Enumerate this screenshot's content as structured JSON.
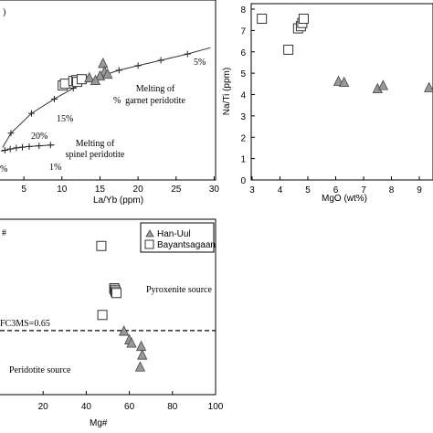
{
  "chart_data": [
    {
      "type": "line",
      "panel_label": ")",
      "xlabel": "La/Yb (ppm)",
      "ylabel": "",
      "xlim": [
        2,
        30
      ],
      "x_ticks": [
        "5",
        "10",
        "15",
        "20",
        "25",
        "30"
      ],
      "curves": [
        {
          "name": "garnet",
          "points": [
            [
              2.2,
              0.18
            ],
            [
              3.3,
              0.26
            ],
            [
              6.0,
              0.37
            ],
            [
              9.0,
              0.45
            ],
            [
              11.5,
              0.51
            ],
            [
              13.0,
              0.54
            ],
            [
              15.0,
              0.575
            ],
            [
              17.5,
              0.61
            ],
            [
              20.0,
              0.635
            ],
            [
              23.0,
              0.665
            ],
            [
              26.5,
              0.7
            ],
            [
              29.5,
              0.735
            ]
          ],
          "markers": [
            [
              3.3,
              0.26
            ],
            [
              6.0,
              0.37
            ],
            [
              9.0,
              0.45
            ],
            [
              11.5,
              0.51
            ],
            [
              15.0,
              0.575
            ],
            [
              17.5,
              0.61
            ],
            [
              20.0,
              0.635
            ],
            [
              23.0,
              0.665
            ],
            [
              26.5,
              0.7
            ]
          ]
        },
        {
          "name": "spinel",
          "points": [
            [
              2.0,
              0.16
            ],
            [
              3.0,
              0.17
            ],
            [
              4.0,
              0.178
            ],
            [
              5.5,
              0.185
            ],
            [
              7.0,
              0.19
            ],
            [
              9.0,
              0.195
            ]
          ],
          "markers": [
            [
              2.5,
              0.165
            ],
            [
              3.2,
              0.172
            ],
            [
              4.0,
              0.178
            ],
            [
              4.8,
              0.182
            ],
            [
              5.7,
              0.186
            ],
            [
              7.0,
              0.19
            ],
            [
              8.5,
              0.194
            ]
          ]
        }
      ],
      "han_uul": [
        [
          15.4,
          0.645
        ],
        [
          15.6,
          0.6
        ],
        [
          15.0,
          0.575
        ],
        [
          16.0,
          0.585
        ],
        [
          13.6,
          0.565
        ],
        [
          14.4,
          0.55
        ]
      ],
      "bayantsagaan": [
        [
          10.1,
          0.525
        ],
        [
          10.4,
          0.535
        ],
        [
          11.5,
          0.55
        ],
        [
          11.9,
          0.555
        ],
        [
          12.0,
          0.545
        ],
        [
          12.6,
          0.56
        ]
      ],
      "annotations": {
        "garnet_label_1": "Melting of",
        "garnet_label_2": "garnet peridotite",
        "spinel_label_1": "Melting of",
        "spinel_label_2": "spinel peridotite",
        "p5": "5%",
        "p15": "15%",
        "p20": "20%",
        "p1": "1%",
        "p0": "%",
        "p1b": "%"
      }
    },
    {
      "type": "scatter",
      "xlabel": "MgO (wt%)",
      "ylabel": "Na/Ti (ppm)",
      "xlim": [
        3,
        9.5
      ],
      "ylim": [
        0,
        8
      ],
      "x_ticks": [
        "3",
        "4",
        "5",
        "6",
        "7",
        "8",
        "9"
      ],
      "y_ticks": [
        "0",
        "1",
        "2",
        "3",
        "4",
        "5",
        "6",
        "7",
        "8"
      ],
      "bayantsagaan": [
        [
          3.35,
          7.55
        ],
        [
          4.3,
          6.1
        ],
        [
          4.65,
          7.1
        ],
        [
          4.75,
          7.2
        ],
        [
          4.8,
          7.35
        ],
        [
          4.85,
          7.55
        ]
      ],
      "han_uul": [
        [
          6.1,
          4.6
        ],
        [
          6.3,
          4.55
        ],
        [
          7.5,
          4.25
        ],
        [
          7.7,
          4.4
        ],
        [
          9.35,
          4.3
        ]
      ]
    },
    {
      "type": "scatter",
      "xlabel": "Mg#",
      "ylabel": "",
      "xlim": [
        0,
        100
      ],
      "ylim": [
        0.3,
        1.1
      ],
      "x_ticks": [
        "20",
        "40",
        "60",
        "80",
        "100"
      ],
      "threshold": 0.65,
      "threshold_label": "FC3MS=0.65",
      "panel_label": "#",
      "source_labels": {
        "pyroxenite": "Pyroxenite source",
        "peridotite": "Peridotite source"
      },
      "legend": {
        "han_uul": "Han-Uul",
        "bayantsagaan": "Bayantsagaan"
      },
      "bayantsagaan": [
        [
          47,
          1.04
        ],
        [
          53,
          0.845
        ],
        [
          53.3,
          0.838
        ],
        [
          53.6,
          0.83
        ],
        [
          54,
          0.823
        ],
        [
          47.5,
          0.722
        ]
      ],
      "han_uul": [
        [
          57.5,
          0.645
        ],
        [
          60,
          0.605
        ],
        [
          61,
          0.59
        ],
        [
          65.5,
          0.575
        ],
        [
          66,
          0.535
        ],
        [
          65,
          0.48
        ]
      ]
    }
  ]
}
